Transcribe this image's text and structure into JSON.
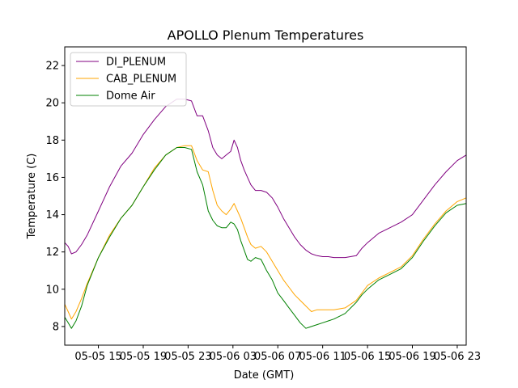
{
  "chart_data": {
    "type": "line",
    "title": "APOLLO Plenum Temperatures",
    "xlabel": "Date (GMT)",
    "ylabel": "Temperature (C)",
    "x_unit": "hours since 05-05 00:00 GMT",
    "xlim": [
      12.0,
      47.8
    ],
    "ylim": [
      7.0,
      23.0
    ],
    "yticks": [
      8,
      10,
      12,
      14,
      16,
      18,
      20,
      22
    ],
    "xticks": [
      {
        "value": 15,
        "label": "05-05 15"
      },
      {
        "value": 19,
        "label": "05-05 19"
      },
      {
        "value": 23,
        "label": "05-05 23"
      },
      {
        "value": 27,
        "label": "05-06 03"
      },
      {
        "value": 31,
        "label": "05-06 07"
      },
      {
        "value": 35,
        "label": "05-06 11"
      },
      {
        "value": 39,
        "label": "05-06 15"
      },
      {
        "value": 43,
        "label": "05-06 19"
      },
      {
        "value": 47,
        "label": "05-06 23"
      }
    ],
    "legend_position": "top-left",
    "grid": false,
    "series": [
      {
        "name": "DI_PLENUM",
        "color": "#800080",
        "x": [
          12.0,
          12.3,
          12.6,
          13.0,
          13.5,
          14.0,
          15.0,
          16.0,
          17.0,
          18.0,
          19.0,
          20.0,
          21.0,
          22.0,
          22.7,
          23.3,
          23.8,
          24.3,
          24.8,
          25.2,
          25.6,
          26.0,
          26.4,
          26.8,
          27.1,
          27.4,
          27.7,
          28.0,
          28.3,
          28.6,
          29.0,
          29.5,
          30.0,
          30.5,
          31.0,
          31.5,
          32.0,
          32.5,
          33.0,
          33.5,
          34.0,
          34.5,
          35.0,
          35.5,
          36.0,
          37.0,
          38.0,
          38.5,
          39.0,
          40.0,
          41.0,
          42.0,
          43.0,
          44.0,
          45.0,
          46.0,
          47.0,
          47.8
        ],
        "values": [
          12.5,
          12.3,
          11.9,
          12.0,
          12.4,
          12.9,
          14.2,
          15.5,
          16.6,
          17.3,
          18.3,
          19.1,
          19.8,
          20.2,
          20.2,
          20.1,
          19.3,
          19.3,
          18.5,
          17.6,
          17.2,
          17.0,
          17.2,
          17.4,
          18.0,
          17.6,
          16.9,
          16.4,
          16.0,
          15.6,
          15.3,
          15.3,
          15.2,
          14.9,
          14.4,
          13.8,
          13.3,
          12.8,
          12.4,
          12.1,
          11.9,
          11.8,
          11.75,
          11.75,
          11.7,
          11.7,
          11.8,
          12.2,
          12.5,
          13.0,
          13.3,
          13.6,
          14.0,
          14.8,
          15.6,
          16.3,
          16.9,
          17.2
        ]
      },
      {
        "name": "CAB_PLENUM",
        "color": "#FFA500",
        "x": [
          12.0,
          12.3,
          12.6,
          13.0,
          13.5,
          14.0,
          15.0,
          16.0,
          17.0,
          18.0,
          19.0,
          20.0,
          21.0,
          22.0,
          22.7,
          23.3,
          23.8,
          24.3,
          24.8,
          25.2,
          25.6,
          26.0,
          26.4,
          26.8,
          27.1,
          27.4,
          27.7,
          28.0,
          28.3,
          28.6,
          29.0,
          29.5,
          30.0,
          30.5,
          31.0,
          31.5,
          32.0,
          32.5,
          33.0,
          33.5,
          34.0,
          34.5,
          35.0,
          35.5,
          36.0,
          37.0,
          38.0,
          38.5,
          39.0,
          40.0,
          41.0,
          42.0,
          43.0,
          44.0,
          45.0,
          46.0,
          47.0,
          47.8
        ],
        "values": [
          9.2,
          8.8,
          8.4,
          8.8,
          9.5,
          10.3,
          11.7,
          12.9,
          13.8,
          14.5,
          15.5,
          16.5,
          17.2,
          17.6,
          17.7,
          17.7,
          16.9,
          16.4,
          16.3,
          15.3,
          14.5,
          14.2,
          14.0,
          14.3,
          14.6,
          14.2,
          13.8,
          13.3,
          12.8,
          12.4,
          12.2,
          12.3,
          12.0,
          11.5,
          11.0,
          10.5,
          10.1,
          9.7,
          9.4,
          9.1,
          8.8,
          8.9,
          8.9,
          8.9,
          8.9,
          9.0,
          9.4,
          9.8,
          10.2,
          10.6,
          10.9,
          11.2,
          11.8,
          12.7,
          13.5,
          14.2,
          14.7,
          14.9
        ]
      },
      {
        "name": "Dome Air",
        "color": "#008000",
        "x": [
          12.0,
          12.3,
          12.6,
          13.0,
          13.5,
          14.0,
          15.0,
          16.0,
          17.0,
          18.0,
          19.0,
          20.0,
          21.0,
          22.0,
          22.7,
          23.3,
          23.8,
          24.3,
          24.8,
          25.2,
          25.6,
          26.0,
          26.4,
          26.8,
          27.1,
          27.4,
          27.7,
          28.0,
          28.3,
          28.6,
          29.0,
          29.5,
          30.0,
          30.5,
          31.0,
          31.5,
          32.0,
          32.5,
          33.0,
          33.5,
          34.0,
          34.5,
          35.0,
          35.5,
          36.0,
          37.0,
          38.0,
          38.5,
          39.0,
          40.0,
          41.0,
          42.0,
          43.0,
          44.0,
          45.0,
          46.0,
          47.0,
          47.8
        ],
        "values": [
          8.5,
          8.2,
          7.9,
          8.3,
          9.1,
          10.2,
          11.7,
          12.8,
          13.8,
          14.5,
          15.5,
          16.4,
          17.2,
          17.6,
          17.6,
          17.5,
          16.3,
          15.6,
          14.2,
          13.7,
          13.4,
          13.3,
          13.3,
          13.6,
          13.5,
          13.2,
          12.6,
          12.1,
          11.6,
          11.5,
          11.7,
          11.6,
          11.0,
          10.5,
          9.8,
          9.4,
          9.0,
          8.6,
          8.2,
          7.9,
          8.0,
          8.1,
          8.2,
          8.3,
          8.4,
          8.7,
          9.3,
          9.7,
          10.0,
          10.5,
          10.8,
          11.1,
          11.7,
          12.6,
          13.4,
          14.1,
          14.5,
          14.6
        ]
      }
    ]
  }
}
